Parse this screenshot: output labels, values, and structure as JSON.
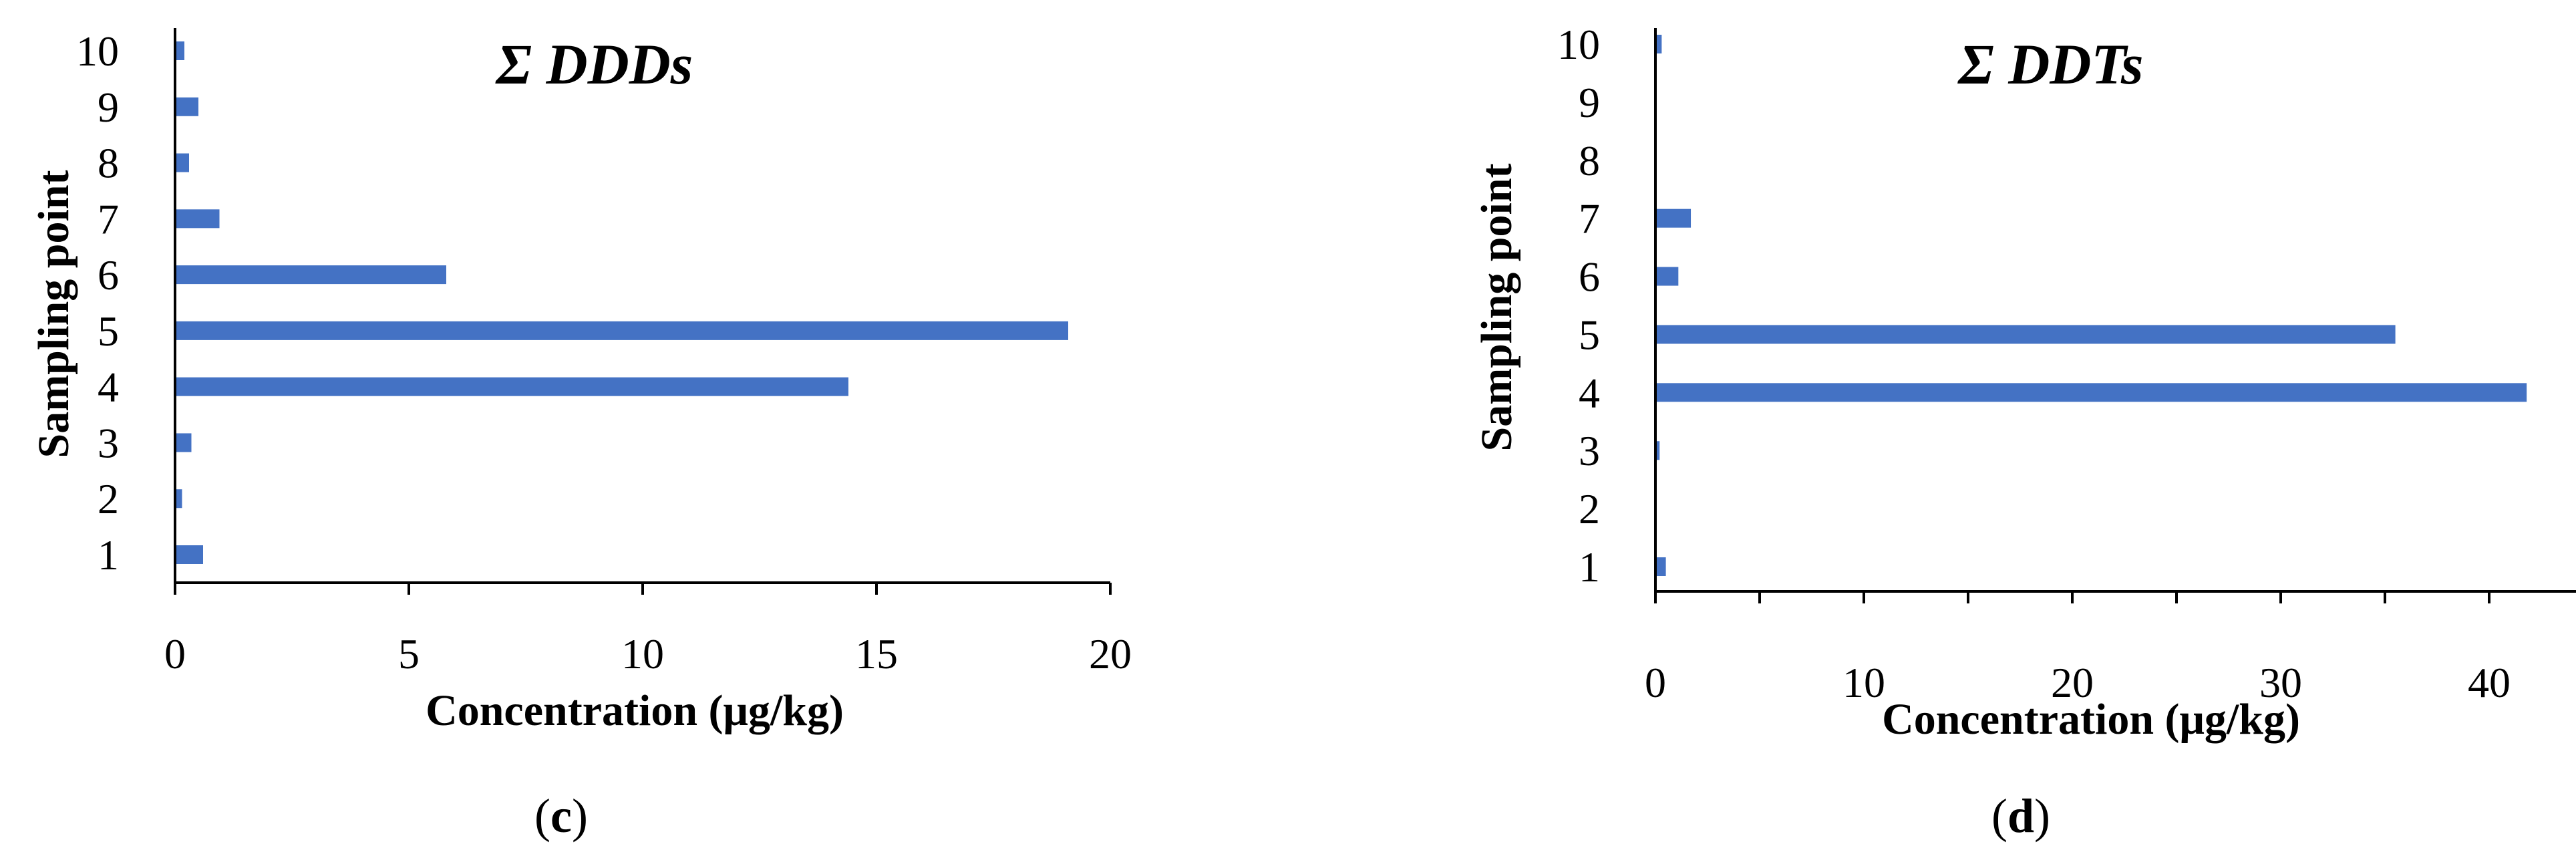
{
  "colors": {
    "bar": "#4472C4",
    "axis": "#000000"
  },
  "chart_data": [
    {
      "type": "bar",
      "orientation": "horizontal",
      "title": "Σ DDDs",
      "xlabel": "Concentration (μg/kg)",
      "ylabel": "Sampling point",
      "categories": [
        "1",
        "2",
        "3",
        "4",
        "5",
        "6",
        "7",
        "8",
        "9",
        "10"
      ],
      "values": [
        0.6,
        0.15,
        0.35,
        14.4,
        19.1,
        5.8,
        0.95,
        0.3,
        0.5,
        0.2
      ],
      "xlim": [
        0,
        20
      ],
      "xticks": [
        "0",
        "5",
        "10",
        "15",
        "20"
      ],
      "xtick_values": [
        0,
        5,
        10,
        15,
        20
      ],
      "minor_xticks": false,
      "caption_prefix": "(",
      "caption_letter": "c",
      "caption_suffix": ")"
    },
    {
      "type": "bar",
      "orientation": "horizontal",
      "title": "Σ DDTs",
      "xlabel": "Concentration (μg/kg)",
      "ylabel": "Sampling point",
      "categories": [
        "1",
        "2",
        "3",
        "4",
        "5",
        "6",
        "7",
        "8",
        "9",
        "10"
      ],
      "values": [
        0.5,
        0,
        0.2,
        41.8,
        35.5,
        1.1,
        1.7,
        0,
        0,
        0.3
      ],
      "xlim": [
        0,
        45
      ],
      "xticks": [
        "0",
        "10",
        "20",
        "30",
        "40"
      ],
      "xtick_values": [
        0,
        10,
        20,
        30,
        40
      ],
      "minor_xticks": true,
      "caption_prefix": "(",
      "caption_letter": "d",
      "caption_suffix": ")"
    }
  ]
}
